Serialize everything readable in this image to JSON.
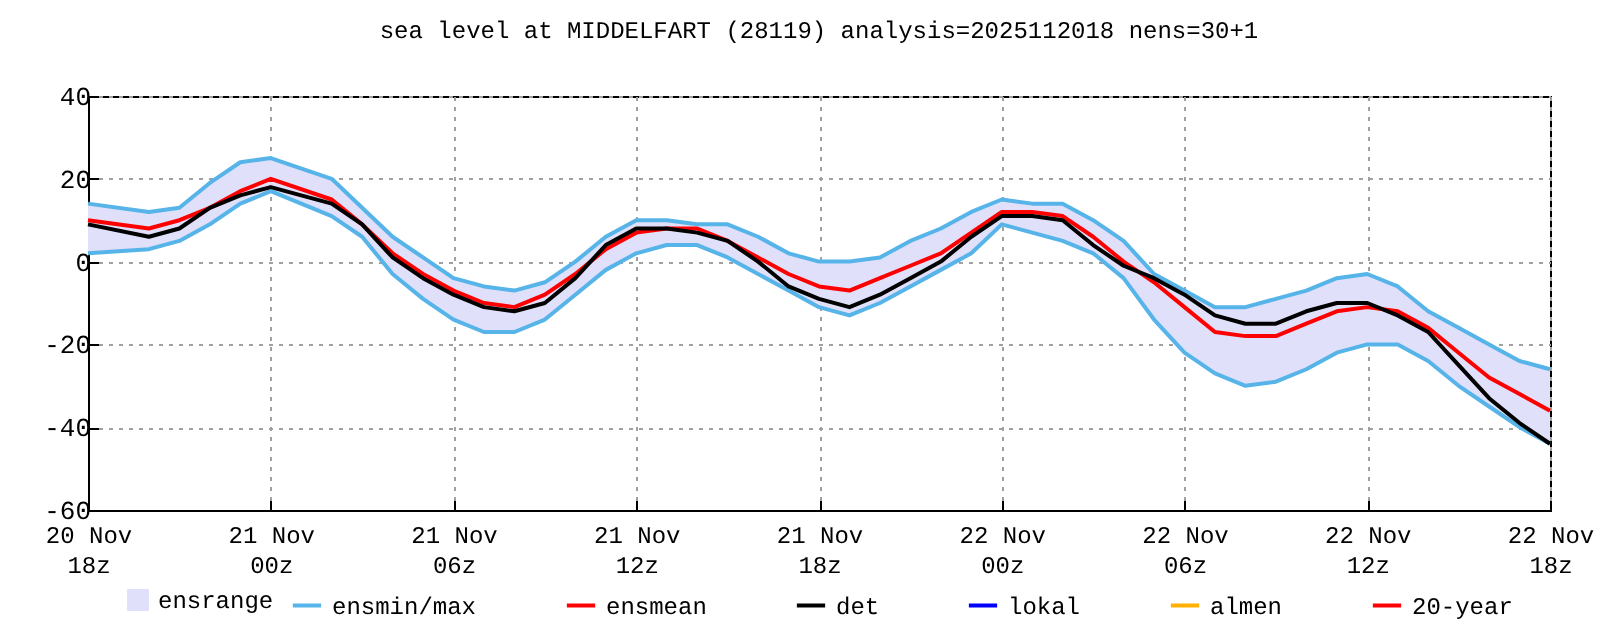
{
  "chart_data": {
    "type": "line",
    "title": "sea level at MIDDELFART (28119) analysis=2025112018 nens=30+1",
    "x": [
      "2025-11-20T18:00",
      "2025-11-20T20:00",
      "2025-11-20T21:00",
      "2025-11-20T22:00",
      "2025-11-20T23:00",
      "2025-11-21T00:00",
      "2025-11-21T02:00",
      "2025-11-21T03:00",
      "2025-11-21T04:00",
      "2025-11-21T05:00",
      "2025-11-21T06:00",
      "2025-11-21T07:00",
      "2025-11-21T08:00",
      "2025-11-21T09:00",
      "2025-11-21T10:00",
      "2025-11-21T11:00",
      "2025-11-21T12:00",
      "2025-11-21T13:00",
      "2025-11-21T14:00",
      "2025-11-21T15:00",
      "2025-11-21T16:00",
      "2025-11-21T17:00",
      "2025-11-21T18:00",
      "2025-11-21T19:00",
      "2025-11-21T20:00",
      "2025-11-21T21:00",
      "2025-11-21T22:00",
      "2025-11-21T23:00",
      "2025-11-22T00:00",
      "2025-11-22T01:00",
      "2025-11-22T02:00",
      "2025-11-22T03:00",
      "2025-11-22T04:00",
      "2025-11-22T05:00",
      "2025-11-22T06:00",
      "2025-11-22T07:00",
      "2025-11-22T08:00",
      "2025-11-22T09:00",
      "2025-11-22T10:00",
      "2025-11-22T11:00",
      "2025-11-22T12:00",
      "2025-11-22T13:00",
      "2025-11-22T14:00",
      "2025-11-22T15:00",
      "2025-11-22T16:00",
      "2025-11-22T17:00",
      "2025-11-22T18:00"
    ],
    "series": [
      {
        "name": "ensrange",
        "type": "area",
        "color": "#e0e0fa",
        "values": [
          null,
          null,
          null,
          null,
          null,
          null,
          null,
          null,
          null,
          null,
          null,
          null,
          null,
          null,
          null,
          null,
          null,
          null,
          null,
          null,
          null,
          null,
          null,
          null,
          null,
          null,
          null,
          null,
          null,
          null,
          null,
          null,
          null,
          null,
          null,
          null,
          null,
          null,
          null,
          null,
          null,
          null,
          null,
          null,
          null,
          null,
          null
        ],
        "lower": [
          2,
          3,
          5,
          9,
          14,
          17,
          11,
          6,
          -3,
          -9,
          -14,
          -17,
          -17,
          -14,
          -8,
          -2,
          2,
          4,
          4,
          1,
          -3,
          -7,
          -11,
          -13,
          -10,
          -6,
          -2,
          2,
          9,
          7,
          5,
          2,
          -4,
          -14,
          -22,
          -27,
          -30,
          -29,
          -26,
          -22,
          -20,
          -20,
          -24,
          -30,
          -35,
          -40,
          -44
        ],
        "upper": [
          14,
          12,
          13,
          19,
          24,
          25,
          20,
          13,
          6,
          1,
          -4,
          -6,
          -7,
          -5,
          0,
          6,
          10,
          10,
          9,
          9,
          6,
          2,
          0,
          0,
          1,
          5,
          8,
          12,
          15,
          14,
          14,
          10,
          5,
          -3,
          -7,
          -11,
          -11,
          -9,
          -7,
          -4,
          -3,
          -6,
          -12,
          -16,
          -20,
          -24,
          -26
        ]
      },
      {
        "name": "ensmin/max",
        "color": "#56b4e9",
        "values": [
          14,
          12,
          13,
          19,
          24,
          25,
          20,
          13,
          6,
          1,
          -4,
          -6,
          -7,
          -5,
          0,
          6,
          10,
          10,
          9,
          9,
          6,
          2,
          0,
          0,
          1,
          5,
          8,
          12,
          15,
          14,
          14,
          10,
          5,
          -3,
          -7,
          -11,
          -11,
          -9,
          -7,
          -4,
          -3,
          -6,
          -12,
          -16,
          -20,
          -24,
          -26
        ]
      },
      {
        "color": "#56b4e9",
        "values": [
          2,
          3,
          5,
          9,
          14,
          17,
          11,
          6,
          -3,
          -9,
          -14,
          -17,
          -17,
          -14,
          -8,
          -2,
          2,
          4,
          4,
          1,
          -3,
          -7,
          -11,
          -13,
          -10,
          -6,
          -2,
          2,
          9,
          7,
          5,
          2,
          -4,
          -14,
          -22,
          -27,
          -30,
          -29,
          -26,
          -22,
          -20,
          -20,
          -24,
          -30,
          -35,
          -40,
          -44
        ]
      },
      {
        "name": "ensmean",
        "color": "#ff0000",
        "values": [
          10,
          8,
          10,
          13,
          17,
          20,
          15,
          9,
          2,
          -3,
          -7,
          -10,
          -11,
          -8,
          -3,
          3,
          7,
          8,
          8,
          5,
          1,
          -3,
          -6,
          -7,
          -4,
          -1,
          2,
          7,
          12,
          12,
          11,
          6,
          0,
          -5,
          -11,
          -17,
          -18,
          -18,
          -15,
          -12,
          -11,
          -12,
          -16,
          -22,
          -28,
          -32,
          -36
        ]
      },
      {
        "name": "det",
        "color": "#000000",
        "values": [
          9,
          6,
          8,
          13,
          16,
          18,
          14,
          9,
          1,
          -4,
          -8,
          -11,
          -12,
          -10,
          -4,
          4,
          8,
          8,
          7,
          5,
          0,
          -6,
          -9,
          -11,
          -8,
          -4,
          0,
          6,
          11,
          11,
          10,
          4,
          -1,
          -4,
          -8,
          -13,
          -15,
          -15,
          -12,
          -10,
          -10,
          -13,
          -17,
          -25,
          -33,
          -39,
          -44
        ]
      },
      {
        "name": "lokal",
        "color": "#0000ff",
        "values": [
          null,
          null,
          null,
          null,
          null,
          null,
          null,
          null,
          null,
          null,
          null,
          null,
          null,
          null,
          null,
          null,
          null,
          null,
          null,
          null,
          null,
          null,
          null,
          null,
          null,
          null,
          null,
          null,
          null,
          null,
          null,
          null,
          null,
          null,
          null,
          null,
          null,
          null,
          null,
          null,
          null,
          null,
          null,
          null,
          null,
          null,
          null
        ]
      },
      {
        "name": "almen",
        "color": "#ffb000",
        "values": [
          null,
          null,
          null,
          null,
          null,
          null,
          null,
          null,
          null,
          null,
          null,
          null,
          null,
          null,
          null,
          null,
          null,
          null,
          null,
          null,
          null,
          null,
          null,
          null,
          null,
          null,
          null,
          null,
          null,
          null,
          null,
          null,
          null,
          null,
          null,
          null,
          null,
          null,
          null,
          null,
          null,
          null,
          null,
          null,
          null,
          null,
          null
        ]
      },
      {
        "name": "20-year",
        "color": "#ff0000",
        "values": [
          null,
          null,
          null,
          null,
          null,
          null,
          null,
          null,
          null,
          null,
          null,
          null,
          null,
          null,
          null,
          null,
          null,
          null,
          null,
          null,
          null,
          null,
          null,
          null,
          null,
          null,
          null,
          null,
          null,
          null,
          null,
          null,
          null,
          null,
          null,
          null,
          null,
          null,
          null,
          null,
          null,
          null,
          null,
          null,
          null,
          null,
          null
        ]
      }
    ],
    "xlim": [
      "2025-11-20T18:00",
      "2025-11-22T18:00"
    ],
    "xticks": [
      {
        "value": "2025-11-20T18:00",
        "label": "20 Nov\n18z"
      },
      {
        "value": "2025-11-21T00:00",
        "label": "21 Nov\n00z"
      },
      {
        "value": "2025-11-21T06:00",
        "label": "21 Nov\n06z"
      },
      {
        "value": "2025-11-21T12:00",
        "label": "21 Nov\n12z"
      },
      {
        "value": "2025-11-21T18:00",
        "label": "21 Nov\n18z"
      },
      {
        "value": "2025-11-22T00:00",
        "label": "22 Nov\n00z"
      },
      {
        "value": "2025-11-22T06:00",
        "label": "22 Nov\n06z"
      },
      {
        "value": "2025-11-22T12:00",
        "label": "22 Nov\n12z"
      },
      {
        "value": "2025-11-22T18:00",
        "label": "22 Nov\n18z"
      }
    ],
    "ylim": [
      -60,
      40
    ],
    "yticks": [
      -60,
      -40,
      -20,
      0,
      20,
      40
    ],
    "grid": true,
    "legend": "bottom"
  }
}
